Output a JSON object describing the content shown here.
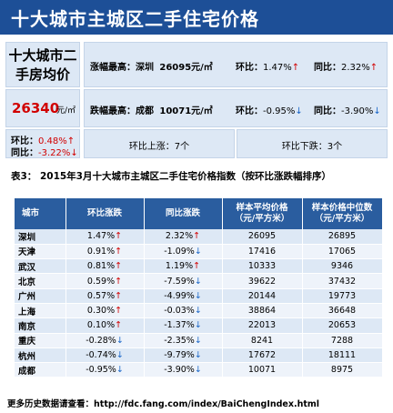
{
  "banner": {
    "title": "十大城市主城区二手住宅价格"
  },
  "summary": {
    "avg_title": "十大城市二手房均价",
    "avg_price": "26340",
    "avg_unit": "元/㎡",
    "ring_label": "环比：",
    "ring_value": "0.48%",
    "ring_arrow": "↑",
    "yoy_label": "同比：",
    "yoy_value": "-3.22%",
    "yoy_arrow": "↓",
    "top_gain": {
      "label": "涨幅最高：",
      "city": "深圳",
      "price": "26095元/㎡",
      "ring_label": "环比：",
      "ring": "1.47%",
      "ring_arrow": "↑",
      "yoy_label": "同比：",
      "yoy": "2.32%",
      "yoy_arrow": "↑"
    },
    "top_loss": {
      "label": "跌幅最高：",
      "city": "成都",
      "price": "10071元/㎡",
      "ring_label": "环比：",
      "ring": "-0.95%",
      "ring_arrow": "↓",
      "yoy_label": "同比：",
      "yoy": "-3.90%",
      "yoy_arrow": "↓"
    },
    "ring_up": "环比上涨：7个",
    "ring_down": "环比下跌：3个"
  },
  "table": {
    "caption": "表3：  2015年3月十大城市主城区二手住宅价格指数（按环比涨跌幅排序）",
    "headers": [
      "城市",
      "环比涨跌",
      "同比涨跌",
      "样本平均价格\n（元/平方米）",
      "样本价格中位数\n（元/平方米）"
    ],
    "rows": [
      {
        "city": "深圳",
        "ring": "1.47%",
        "ring_arrow": "↑",
        "yoy": "2.32%",
        "yoy_arrow": "↑",
        "avg": "26095",
        "median": "26895"
      },
      {
        "city": "天津",
        "ring": "0.91%",
        "ring_arrow": "↑",
        "yoy": "-1.09%",
        "yoy_arrow": "↓",
        "avg": "17416",
        "median": "17065"
      },
      {
        "city": "武汉",
        "ring": "0.81%",
        "ring_arrow": "↑",
        "yoy": "1.19%",
        "yoy_arrow": "↑",
        "avg": "10333",
        "median": "9346"
      },
      {
        "city": "北京",
        "ring": "0.59%",
        "ring_arrow": "↑",
        "yoy": "-7.59%",
        "yoy_arrow": "↓",
        "avg": "39622",
        "median": "37432"
      },
      {
        "city": "广州",
        "ring": "0.57%",
        "ring_arrow": "↑",
        "yoy": "-4.99%",
        "yoy_arrow": "↓",
        "avg": "20144",
        "median": "19773"
      },
      {
        "city": "上海",
        "ring": "0.30%",
        "ring_arrow": "↑",
        "yoy": "-0.03%",
        "yoy_arrow": "↓",
        "avg": "38864",
        "median": "36648"
      },
      {
        "city": "南京",
        "ring": "0.10%",
        "ring_arrow": "↑",
        "yoy": "-1.37%",
        "yoy_arrow": "↓",
        "avg": "22013",
        "median": "20653"
      },
      {
        "city": "重庆",
        "ring": "-0.28%",
        "ring_arrow": "↓",
        "yoy": "-2.35%",
        "yoy_arrow": "↓",
        "avg": "8241",
        "median": "7288"
      },
      {
        "city": "杭州",
        "ring": "-0.74%",
        "ring_arrow": "↓",
        "yoy": "-9.79%",
        "yoy_arrow": "↓",
        "avg": "17672",
        "median": "18111"
      },
      {
        "city": "成都",
        "ring": "-0.95%",
        "ring_arrow": "↓",
        "yoy": "-3.90%",
        "yoy_arrow": "↓",
        "avg": "10071",
        "median": "8975"
      }
    ]
  },
  "footer": {
    "label": "更多历史数据请查看：",
    "url": "http://fdc.fang.com/index/BaiChengIndex.html"
  },
  "colors": {
    "banner": "#1d4f97",
    "header": "#2a5d9f",
    "up": "#d10000",
    "down": "#1a66c8",
    "card": "#dde8f5"
  }
}
